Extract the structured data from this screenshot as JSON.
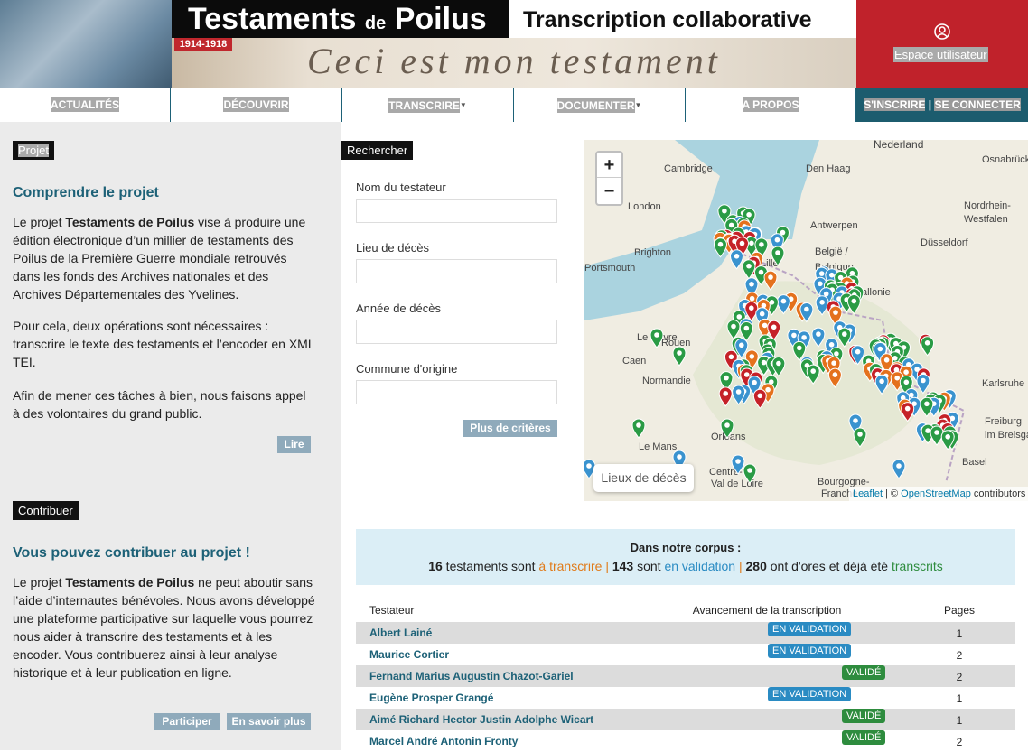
{
  "header": {
    "title_main": "Testaments",
    "title_de": "de",
    "title_poilus": "Poilus",
    "subtitle": "Transcription collaborative",
    "years": "1914-1918",
    "handwriting": "Ceci est mon testament",
    "user": "Espace utilisateur"
  },
  "nav": {
    "items": [
      "ACTUALITÉS",
      "DÉCOUVRIR",
      "TRANSCRIRE",
      "DOCUMENTER",
      "A PROPOS"
    ],
    "signup": "S'INSCRIRE",
    "separator": "|",
    "login": "SE CONNECTER"
  },
  "project": {
    "tag": "Projet",
    "heading": "Comprendre le projet",
    "p1": [
      "Le projet ",
      "Testaments de Poilus",
      " vise à produire une édition électronique d’un millier de testaments des Poilus de la Première Guerre mondiale retrouvés dans les fonds des Archives nationales et des Archives Départementales des Yvelines."
    ],
    "p2": "Pour cela, deux opérations sont nécessaires : transcrire le texte des testaments et l’encoder en XML TEI.",
    "p3": "Afin de mener ces tâches à bien, nous faisons appel à des volontaires du grand public.",
    "button": "Lire"
  },
  "contribute": {
    "tag": "Contribuer",
    "heading": "Vous pouvez contribuer au projet !",
    "p": [
      "Le projet ",
      "Testaments de Poilus",
      " ne peut aboutir sans l’aide d’internautes bénévoles. Nous avons développé une plateforme participative sur laquelle vous pourrez nous aider à transcrire des testaments et à les encoder. Vous contribuerez ainsi à leur analyse historique et à leur publication en ligne."
    ],
    "buttons": [
      "Participer",
      "En savoir plus"
    ]
  },
  "search": {
    "tag": "Rechercher",
    "fields": [
      "Nom du testateur",
      "Lieu de décès",
      "Année de décès",
      "Commune d'origine"
    ],
    "button": "Plus de critères"
  },
  "map": {
    "zoom_in": "+",
    "zoom_out": "−",
    "legend": "Lieux de décès",
    "attribution": [
      "Leaflet",
      " | © ",
      "OpenStreetMap",
      " contributors"
    ],
    "places": [
      "Nederland",
      "Cambridge",
      "Osnabrück",
      "Den Haag",
      "London",
      "Antwerpen",
      "Düsseldorf",
      "Nordrhein-",
      "Westfalen",
      "Brighton",
      "Portsmouth",
      "Lille",
      "België /",
      "Belgique",
      "Wallonie",
      "Le Havre",
      "Rouen",
      "Caen",
      "Normandie",
      "Karlsruhe",
      "Freiburg",
      "im Breisgau",
      "Basel",
      "Orléans",
      "Le Mans",
      "Centre-",
      "Val de Loire",
      "Bourgogne-",
      "Franche"
    ]
  },
  "corpus": {
    "heading": "Dans notre corpus :",
    "segments": [
      "16",
      " testaments sont ",
      "à transcrire",
      " | ",
      "143",
      " sont ",
      "en validation",
      " | ",
      "280",
      " ont d'ores et déjà été ",
      "transcrits"
    ]
  },
  "table": {
    "headers": [
      "Testateur",
      "Avancement de la transcription",
      "Pages"
    ],
    "status_colors": {
      "EN VALIDATION": "#2a8bc3",
      "VALIDÉ": "#2e8c3e"
    },
    "rows": [
      {
        "name": "Albert Lainé",
        "status": "EN VALIDATION",
        "pages": "1"
      },
      {
        "name": "Maurice Cortier",
        "status": "EN VALIDATION",
        "pages": "2"
      },
      {
        "name": "Fernand Marius Augustin Chazot-Gariel",
        "status": "VALIDÉ",
        "pages": "2"
      },
      {
        "name": "Eugène Prosper Grangé",
        "status": "EN VALIDATION",
        "pages": "1"
      },
      {
        "name": "Aimé Richard Hector Justin Adolphe Wicart",
        "status": "VALIDÉ",
        "pages": "1"
      },
      {
        "name": "Marcel André Antonin Fronty",
        "status": "VALIDÉ",
        "pages": "2"
      }
    ]
  }
}
